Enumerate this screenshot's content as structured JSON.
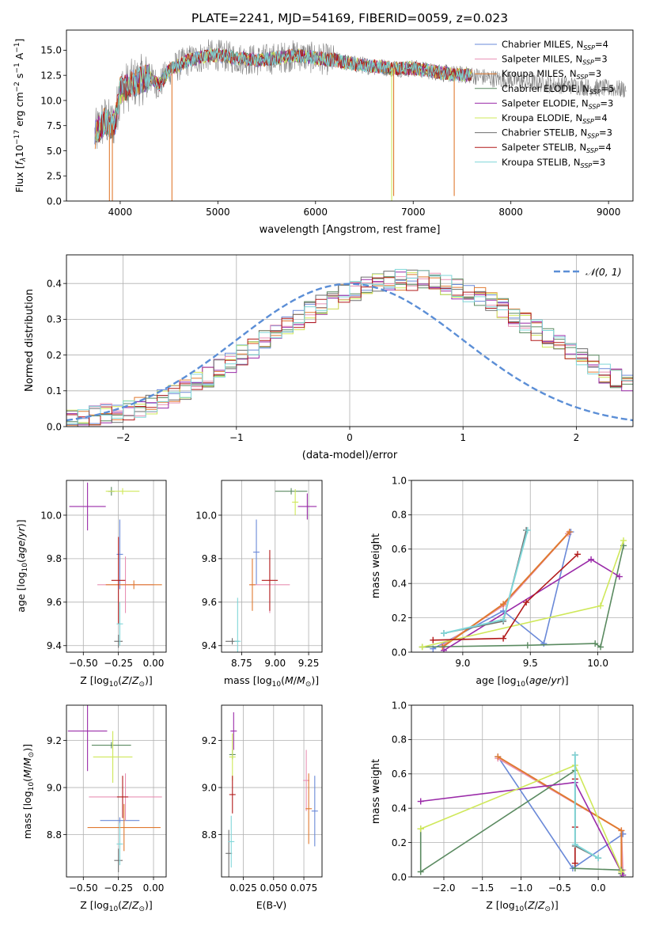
{
  "figure_title": "PLATE=2241, MJD=54169, FIBERID=0059, z=0.023",
  "colors": {
    "chabrier_miles": "#6a89d8",
    "salpeter_miles": "#e890b4",
    "kroupa_miles": "#e07a30",
    "chabrier_elodie": "#5a8a60",
    "salpeter_elodie": "#9a2aa8",
    "kroupa_elodie": "#cfe85a",
    "chabrier_stelib": "#6e6e6e",
    "salpeter_stelib": "#b21a1a",
    "kroupa_stelib": "#7fd6d8",
    "data": "#808080",
    "normal_curve": "#5b8ed6"
  },
  "chart_data": [
    {
      "id": "spectrum",
      "type": "line",
      "xlabel": "wavelength [Angstrom, rest frame]",
      "ylabel": "Flux [f_λ10^-17 erg cm^-2 s^-1 A^-1]",
      "xlim": [
        3450,
        9250
      ],
      "ylim": [
        0,
        17.0
      ],
      "xticks": [
        4000,
        5000,
        6000,
        7000,
        8000,
        9000
      ],
      "yticks": [
        0.0,
        2.5,
        5.0,
        7.5,
        10.0,
        12.5,
        15.0
      ],
      "legend": "upper right",
      "grid": false,
      "data_range": [
        3740,
        9180
      ],
      "continuum_points": {
        "x": [
          3740,
          3800,
          3850,
          3900,
          3950,
          4000,
          4100,
          4200,
          4300,
          4400,
          4500,
          4600,
          4700,
          4800,
          4900,
          5000,
          5200,
          5400,
          5600,
          5800,
          6000,
          6200,
          6400,
          6600,
          6800,
          7000,
          7200,
          7400,
          7600,
          7800,
          8000,
          8200,
          8400,
          8600,
          8800,
          9000,
          9180
        ],
        "y": [
          6.5,
          7.5,
          8.0,
          7.5,
          8.0,
          11.0,
          11.5,
          12.0,
          12.3,
          11.5,
          13.0,
          13.5,
          14.0,
          14.2,
          14.5,
          14.5,
          14.2,
          14.0,
          14.2,
          14.5,
          14.2,
          14.0,
          13.6,
          13.4,
          13.2,
          13.2,
          12.9,
          12.6,
          12.5,
          12.2,
          12.0,
          11.8,
          11.6,
          11.5,
          11.3,
          11.2,
          11.1
        ]
      },
      "spikes": [
        {
          "x": 4530,
          "y": 0.0
        },
        {
          "x": 6780,
          "y": 0.0
        },
        {
          "x": 6800,
          "y": 0.5
        },
        {
          "x": 7420,
          "y": 0.5
        },
        {
          "x": 3890,
          "y": 0.0
        },
        {
          "x": 3920,
          "y": 0.0
        }
      ],
      "series": [
        {
          "name": "Chabrier MILES, N_SSP=4",
          "label_main": "Chabrier MILES, N",
          "label_sub": "SSP",
          "label_end": "=4",
          "color": "#6a89d8"
        },
        {
          "name": "Salpeter MILES, N_SSP=3",
          "label_main": "Salpeter MILES, N",
          "label_sub": "SSP",
          "label_end": "=3",
          "color": "#e890b4"
        },
        {
          "name": "Kroupa MILES, N_SSP=3",
          "label_main": "Kroupa MILES, N",
          "label_sub": "SSP",
          "label_end": "=3",
          "color": "#e07a30"
        },
        {
          "name": "Chabrier ELODIE, N_SSP=5",
          "label_main": "Chabrier ELODIE, N",
          "label_sub": "SSP",
          "label_end": "=5",
          "color": "#5a8a60"
        },
        {
          "name": "Salpeter ELODIE, N_SSP=3",
          "label_main": "Salpeter ELODIE, N",
          "label_sub": "SSP",
          "label_end": "=3",
          "color": "#9a2aa8"
        },
        {
          "name": "Kroupa ELODIE, N_SSP=4",
          "label_main": "Kroupa ELODIE, N",
          "label_sub": "SSP",
          "label_end": "=4",
          "color": "#cfe85a"
        },
        {
          "name": "Chabrier STELIB, N_SSP=3",
          "label_main": "Chabrier STELIB, N",
          "label_sub": "SSP",
          "label_end": "=3",
          "color": "#6e6e6e"
        },
        {
          "name": "Salpeter STELIB, N_SSP=4",
          "label_main": "Salpeter STELIB, N",
          "label_sub": "SSP",
          "label_end": "=4",
          "color": "#b21a1a"
        },
        {
          "name": "Kroupa STELIB, N_SSP=3",
          "label_main": "Kroupa STELIB, N",
          "label_sub": "SSP",
          "label_end": "=3",
          "color": "#7fd6d8"
        }
      ]
    },
    {
      "id": "residuals",
      "type": "step",
      "xlabel": "(data-model)/error",
      "ylabel": "Normed distribution",
      "xlim": [
        -2.5,
        2.5
      ],
      "ylim": [
        0,
        0.48
      ],
      "xticks": [
        -2,
        -1,
        0,
        1,
        2
      ],
      "yticks": [
        0.0,
        0.1,
        0.2,
        0.3,
        0.4
      ],
      "grid": true,
      "legend": "upper right",
      "curve_label": "𝒩(0, 1)",
      "bins": {
        "start": -2.5,
        "width": 0.1,
        "values": [
          0.02,
          0.025,
          0.03,
          0.035,
          0.04,
          0.048,
          0.055,
          0.065,
          0.08,
          0.09,
          0.105,
          0.125,
          0.14,
          0.16,
          0.18,
          0.2,
          0.22,
          0.24,
          0.26,
          0.28,
          0.3,
          0.32,
          0.34,
          0.355,
          0.37,
          0.38,
          0.39,
          0.4,
          0.405,
          0.41,
          0.41,
          0.41,
          0.4,
          0.395,
          0.385,
          0.375,
          0.36,
          0.345,
          0.33,
          0.31,
          0.29,
          0.27,
          0.25,
          0.23,
          0.21,
          0.19,
          0.17,
          0.15,
          0.135,
          0.118
        ]
      }
    },
    {
      "id": "age_vs_Z",
      "type": "errorbar",
      "xlabel": "Z [log10(Z/Z⊙)]",
      "ylabel": "age [log10(age/yr)]",
      "xlim": [
        -0.62,
        0.09
      ],
      "ylim": [
        9.37,
        10.16
      ],
      "xticks": [
        -0.5,
        -0.25,
        0.0
      ],
      "xticklabels": [
        "−0.50",
        "−0.25",
        "0.00"
      ],
      "yticks": [
        9.4,
        9.6,
        9.8,
        10.0
      ],
      "grid": true,
      "points": [
        {
          "series": "Chabrier MILES",
          "x": -0.24,
          "y": 9.82,
          "xerr": 0.0,
          "yerr": 0.16
        },
        {
          "series": "Salpeter MILES",
          "x": -0.2,
          "y": 9.68,
          "xerr": 0.2,
          "yerr": 0.13
        },
        {
          "series": "Kroupa MILES",
          "x": -0.14,
          "y": 9.68,
          "xerr": 0.2,
          "yerr": 0.02
        },
        {
          "series": "Chabrier ELODIE",
          "x": -0.3,
          "y": 10.11,
          "xerr": 0.0,
          "yerr": 0.02
        },
        {
          "series": "Salpeter ELODIE",
          "x": -0.47,
          "y": 10.04,
          "xerr": 0.13,
          "yerr": 0.11
        },
        {
          "series": "Kroupa ELODIE",
          "x": -0.22,
          "y": 10.11,
          "xerr": 0.12,
          "yerr": 0.0
        },
        {
          "series": "Chabrier STELIB",
          "x": -0.25,
          "y": 9.42,
          "xerr": 0.03,
          "yerr": 0.03
        },
        {
          "series": "Salpeter STELIB",
          "x": -0.25,
          "y": 9.7,
          "xerr": 0.05,
          "yerr": 0.2
        },
        {
          "series": "Kroupa STELIB",
          "x": -0.24,
          "y": 9.5,
          "xerr": 0.0,
          "yerr": 0.1
        }
      ]
    },
    {
      "id": "age_vs_mass",
      "type": "errorbar",
      "xlabel": "mass [log10(M/M⊙)]",
      "ylabel": "",
      "xlim": [
        8.6,
        9.35
      ],
      "ylim": [
        9.37,
        10.16
      ],
      "xticks": [
        8.75,
        9.0,
        9.25
      ],
      "xticklabels": [
        "8.75",
        "9.00",
        "9.25"
      ],
      "yticks": [
        9.4,
        9.6,
        9.8,
        10.0
      ],
      "grid": true,
      "points": [
        {
          "series": "Chabrier MILES",
          "x": 8.86,
          "y": 9.83,
          "xerr": 0.0,
          "yerr": 0.15
        },
        {
          "series": "Salpeter MILES",
          "x": 8.96,
          "y": 9.68,
          "xerr": 0.15,
          "yerr": 0.13
        },
        {
          "series": "Kroupa MILES",
          "x": 8.83,
          "y": 9.68,
          "xerr": 0.0,
          "yerr": 0.12
        },
        {
          "series": "Chabrier ELODIE",
          "x": 9.12,
          "y": 10.11,
          "xerr": 0.12,
          "yerr": 0.0
        },
        {
          "series": "Salpeter ELODIE",
          "x": 9.24,
          "y": 10.04,
          "xerr": 0.07,
          "yerr": 0.06
        },
        {
          "series": "Kroupa ELODIE",
          "x": 9.15,
          "y": 10.06,
          "xerr": 0.0,
          "yerr": 0.06
        },
        {
          "series": "Chabrier STELIB",
          "x": 8.68,
          "y": 9.42,
          "xerr": 0.05,
          "yerr": 0.0
        },
        {
          "series": "Salpeter STELIB",
          "x": 8.96,
          "y": 9.7,
          "xerr": 0.06,
          "yerr": 0.14
        },
        {
          "series": "Kroupa STELIB",
          "x": 8.72,
          "y": 9.42,
          "xerr": 0.0,
          "yerr": 0.2
        }
      ]
    },
    {
      "id": "mass_weight_vs_age",
      "type": "line",
      "xlabel": "age [log10(age/yr)]",
      "ylabel": "mass weight",
      "xlim": [
        8.62,
        10.26
      ],
      "ylim": [
        0,
        1.0
      ],
      "xticks": [
        9.0,
        9.5,
        10.0
      ],
      "xticklabels": [
        "9.0",
        "9.5",
        "10.0"
      ],
      "yticks": [
        0.0,
        0.2,
        0.4,
        0.6,
        0.8,
        1.0
      ],
      "grid": true,
      "series": [
        {
          "name": "Chabrier MILES",
          "x": [
            8.78,
            9.3,
            9.6,
            9.8
          ],
          "y": [
            0.02,
            0.24,
            0.05,
            0.7
          ]
        },
        {
          "name": "Salpeter MILES",
          "x": [
            8.85,
            9.3,
            9.78
          ],
          "y": [
            0.04,
            0.27,
            0.69
          ]
        },
        {
          "name": "Kroupa MILES",
          "x": [
            8.85,
            9.3,
            9.79
          ],
          "y": [
            0.03,
            0.28,
            0.7
          ]
        },
        {
          "name": "Chabrier ELODIE",
          "x": [
            8.7,
            9.48,
            9.98,
            10.02,
            10.19
          ],
          "y": [
            0.03,
            0.04,
            0.05,
            0.03,
            0.62
          ]
        },
        {
          "name": "Salpeter ELODIE",
          "x": [
            8.86,
            9.95,
            10.16
          ],
          "y": [
            0.01,
            0.54,
            0.44
          ]
        },
        {
          "name": "Kroupa ELODIE",
          "x": [
            8.7,
            10.02,
            10.19
          ],
          "y": [
            0.03,
            0.27,
            0.65
          ]
        },
        {
          "name": "Chabrier STELIB",
          "x": [
            8.86,
            9.3,
            9.47
          ],
          "y": [
            0.11,
            0.18,
            0.71
          ]
        },
        {
          "name": "Salpeter STELIB",
          "x": [
            8.78,
            9.3,
            9.47,
            9.85
          ],
          "y": [
            0.07,
            0.08,
            0.29,
            0.57
          ]
        },
        {
          "name": "Kroupa STELIB",
          "x": [
            8.86,
            9.3,
            9.48
          ],
          "y": [
            0.11,
            0.19,
            0.71
          ]
        }
      ]
    },
    {
      "id": "mass_vs_Z",
      "type": "errorbar",
      "xlabel": "Z [log10(Z/Z⊙)]",
      "ylabel": "mass [log10(M/M⊙)]",
      "xlim": [
        -0.62,
        0.09
      ],
      "ylim": [
        8.62,
        9.35
      ],
      "xticks": [
        -0.5,
        -0.25,
        0.0
      ],
      "xticklabels": [
        "−0.50",
        "−0.25",
        "0.00"
      ],
      "yticks": [
        8.8,
        9.0,
        9.2
      ],
      "grid": true,
      "points": [
        {
          "series": "Chabrier MILES",
          "x": -0.24,
          "y": 8.86,
          "xerr": 0.14,
          "yerr": 0.0
        },
        {
          "series": "Salpeter MILES",
          "x": -0.2,
          "y": 8.96,
          "xerr": 0.26,
          "yerr": 0.1
        },
        {
          "series": "Kroupa MILES",
          "x": -0.21,
          "y": 8.83,
          "xerr": 0.26,
          "yerr": 0.1
        },
        {
          "series": "Chabrier ELODIE",
          "x": -0.3,
          "y": 9.18,
          "xerr": 0.14,
          "yerr": 0.0
        },
        {
          "series": "Salpeter ELODIE",
          "x": -0.47,
          "y": 9.24,
          "xerr": 0.14,
          "yerr": 0.17
        },
        {
          "series": "Kroupa ELODIE",
          "x": -0.29,
          "y": 9.13,
          "xerr": 0.14,
          "yerr": 0.11
        },
        {
          "series": "Chabrier STELIB",
          "x": -0.25,
          "y": 8.69,
          "xerr": 0.03,
          "yerr": 0.05
        },
        {
          "series": "Salpeter STELIB",
          "x": -0.22,
          "y": 8.96,
          "xerr": 0.04,
          "yerr": 0.09
        },
        {
          "series": "Kroupa STELIB",
          "x": -0.24,
          "y": 8.76,
          "xerr": 0.0,
          "yerr": 0.09
        }
      ]
    },
    {
      "id": "mass_vs_EBV",
      "type": "errorbar",
      "xlabel": "E(B-V)",
      "ylabel": "",
      "xlim": [
        0.007,
        0.09
      ],
      "ylim": [
        8.62,
        9.35
      ],
      "xticks": [
        0.025,
        0.05,
        0.075
      ],
      "xticklabels": [
        "0.025",
        "0.050",
        "0.075"
      ],
      "yticks": [
        8.8,
        9.0,
        9.2
      ],
      "grid": true,
      "points": [
        {
          "series": "Chabrier MILES",
          "x": 0.084,
          "y": 8.9,
          "xerr": 0.0,
          "yerr": 0.15
        },
        {
          "series": "Salpeter MILES",
          "x": 0.077,
          "y": 9.03,
          "xerr": 0.0,
          "yerr": 0.13
        },
        {
          "series": "Kroupa MILES",
          "x": 0.079,
          "y": 8.91,
          "xerr": 0.0,
          "yerr": 0.15
        },
        {
          "series": "Chabrier ELODIE",
          "x": 0.016,
          "y": 9.14,
          "xerr": 0.0,
          "yerr": 0.02
        },
        {
          "series": "Salpeter ELODIE",
          "x": 0.017,
          "y": 9.24,
          "xerr": 0.0,
          "yerr": 0.08
        },
        {
          "series": "Kroupa ELODIE",
          "x": 0.016,
          "y": 9.13,
          "xerr": 0.0,
          "yerr": 0.1
        },
        {
          "series": "Chabrier STELIB",
          "x": 0.013,
          "y": 8.72,
          "xerr": 0.0,
          "yerr": 0.1
        },
        {
          "series": "Salpeter STELIB",
          "x": 0.016,
          "y": 8.97,
          "xerr": 0.0,
          "yerr": 0.08
        },
        {
          "series": "Kroupa STELIB",
          "x": 0.015,
          "y": 8.77,
          "xerr": 0.0,
          "yerr": 0.11
        }
      ]
    },
    {
      "id": "mass_weight_vs_Z",
      "type": "line",
      "xlabel": "Z [log10(Z/Z⊙)]",
      "ylabel": "mass weight",
      "xlim": [
        -2.42,
        0.45
      ],
      "ylim": [
        0,
        1.0
      ],
      "xticks": [
        -2.0,
        -1.5,
        -1.0,
        -0.5,
        0.0
      ],
      "xticklabels": [
        "−2.0",
        "−1.5",
        "−1.0",
        "−0.5",
        "0.0"
      ],
      "yticks": [
        0.0,
        0.2,
        0.4,
        0.6,
        0.8,
        1.0
      ],
      "grid": true,
      "series": [
        {
          "name": "Chabrier MILES",
          "x": [
            -1.3,
            -0.33,
            0.32
          ],
          "y": [
            0.7,
            0.05,
            0.25
          ]
        },
        {
          "name": "Salpeter MILES",
          "x": [
            -1.3,
            0.3,
            0.32
          ],
          "y": [
            0.69,
            0.27,
            0.04
          ]
        },
        {
          "name": "Kroupa MILES",
          "x": [
            -1.3,
            0.3,
            0.3
          ],
          "y": [
            0.7,
            0.27,
            0.03
          ]
        },
        {
          "name": "Chabrier ELODIE",
          "x": [
            -2.3,
            -2.3,
            -0.3,
            -0.3,
            0.3,
            0.3
          ],
          "y": [
            0.28,
            0.03,
            0.62,
            0.05,
            0.04,
            0.02
          ]
        },
        {
          "name": "Salpeter ELODIE",
          "x": [
            -2.3,
            -0.3,
            0.32
          ],
          "y": [
            0.44,
            0.55,
            0.01
          ]
        },
        {
          "name": "Kroupa ELODIE",
          "x": [
            -2.3,
            -0.3,
            0.3
          ],
          "y": [
            0.28,
            0.65,
            0.03
          ]
        },
        {
          "name": "Chabrier STELIB",
          "x": [
            -0.3,
            -0.3,
            0.0
          ],
          "y": [
            0.71,
            0.18,
            0.11
          ]
        },
        {
          "name": "Salpeter STELIB",
          "x": [
            -0.3,
            -0.3,
            -0.3
          ],
          "y": [
            0.57,
            0.29,
            0.08
          ]
        },
        {
          "name": "Kroupa STELIB",
          "x": [
            -0.3,
            -0.3,
            0.0
          ],
          "y": [
            0.71,
            0.19,
            0.11
          ]
        }
      ]
    }
  ]
}
